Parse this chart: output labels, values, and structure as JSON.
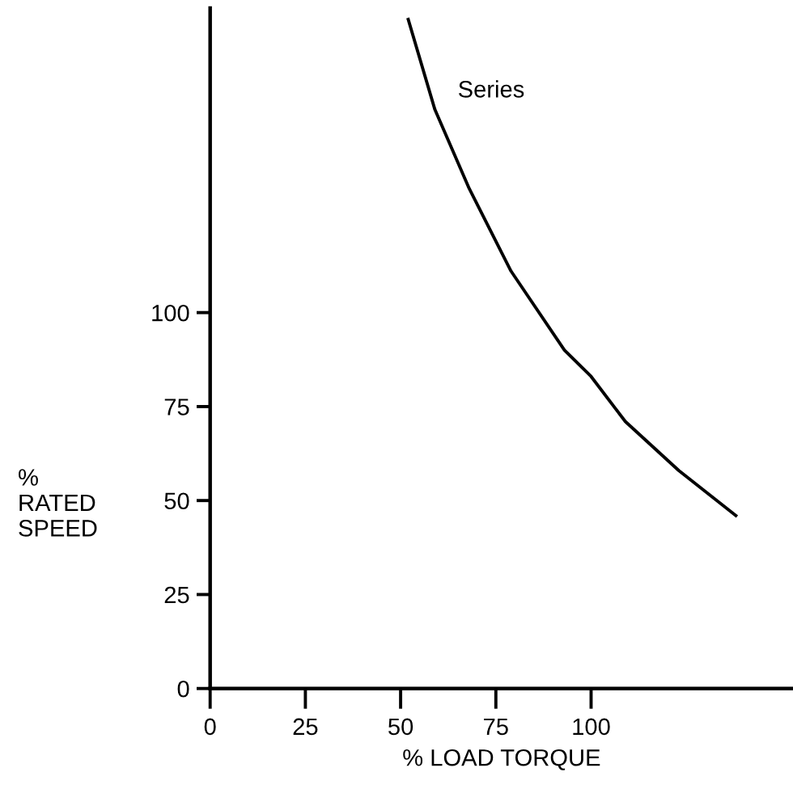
{
  "chart_data": {
    "type": "line",
    "xlabel": "% LOAD TORQUE",
    "ylabel": "%\nRATED\nSPEED",
    "x": [
      52,
      59,
      68,
      79,
      93,
      100,
      109,
      123,
      138
    ],
    "series": [
      {
        "name": "Series",
        "color": "#000000",
        "values": [
          178,
          154,
          133,
          111,
          90,
          83,
          71,
          58,
          46
        ]
      }
    ],
    "xlim": [
      0,
      153
    ],
    "ylim": [
      0,
      181
    ],
    "xticks": [
      0,
      25,
      50,
      75,
      100
    ],
    "yticks": [
      0,
      25,
      50,
      75,
      100
    ],
    "grid": false,
    "legend": false,
    "marker": "none",
    "line_style": "solid"
  }
}
